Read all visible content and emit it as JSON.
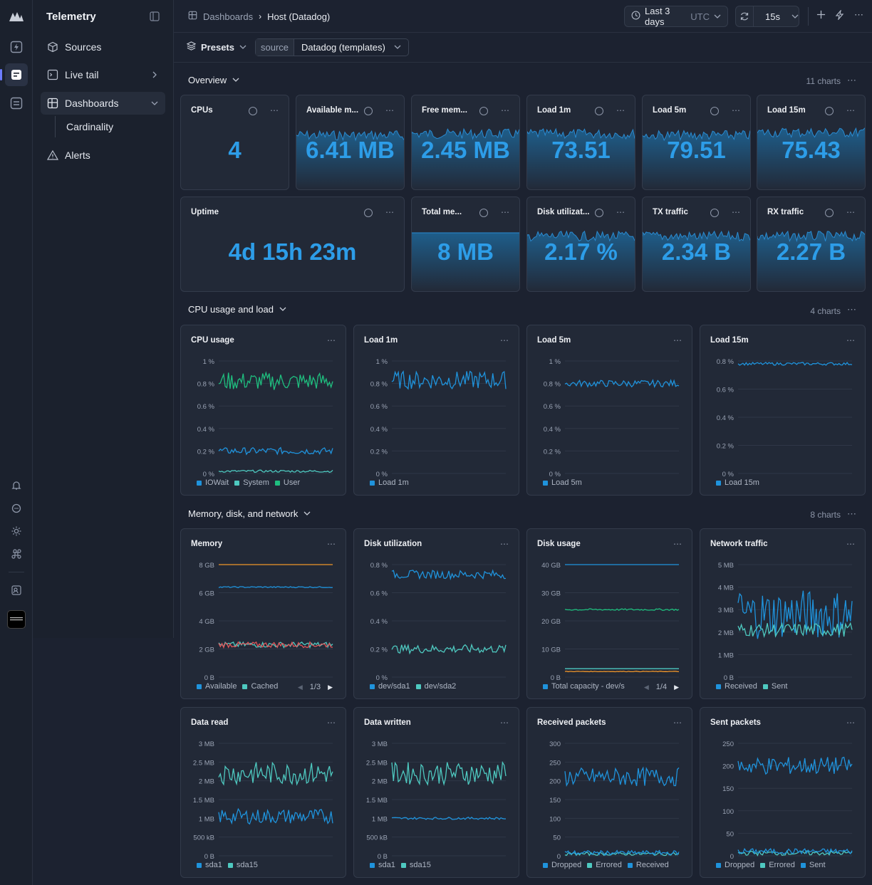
{
  "app": {
    "title": "Telemetry"
  },
  "nav": {
    "items": [
      {
        "label": "Sources",
        "icon": "cube-icon"
      },
      {
        "label": "Live tail",
        "icon": "terminal-icon"
      },
      {
        "label": "Dashboards",
        "icon": "dashboard-icon"
      },
      {
        "label": "Alerts",
        "icon": "alert-icon"
      }
    ],
    "sub_item": "Cardinality"
  },
  "breadcrumb": {
    "root": "Dashboards",
    "current": "Host (Datadog)"
  },
  "toolbar": {
    "time_range": "Last 3 days",
    "tz": "UTC",
    "refresh": "15s"
  },
  "filters": {
    "presets_label": "Presets",
    "source_key": "source",
    "source_value": "Datadog (templates)"
  },
  "sections": [
    {
      "title": "Overview",
      "count": "11 charts"
    },
    {
      "title": "CPU usage and load",
      "count": "4 charts"
    },
    {
      "title": "Memory, disk, and network",
      "count": "8 charts"
    }
  ],
  "stats": [
    {
      "title": "CPUs",
      "value": "4",
      "spark": false
    },
    {
      "title": "Available m...",
      "value": "6.41 MB",
      "spark": true
    },
    {
      "title": "Free mem...",
      "value": "2.45 MB",
      "spark": true
    },
    {
      "title": "Load 1m",
      "value": "73.51",
      "spark": true
    },
    {
      "title": "Load 5m",
      "value": "79.51",
      "spark": true
    },
    {
      "title": "Load 15m",
      "value": "75.43",
      "spark": true
    },
    {
      "title": "Uptime",
      "value": "4d 15h 23m",
      "spark": false
    },
    {
      "title": "Total me...",
      "value": "8 MB",
      "spark": true
    },
    {
      "title": "Disk utilizat...",
      "value": "2.17 %",
      "spark": true
    },
    {
      "title": "TX traffic",
      "value": "2.34 B",
      "spark": true
    },
    {
      "title": "RX traffic",
      "value": "2.27 B",
      "spark": true
    }
  ],
  "colors": {
    "blue": "#1f93dc",
    "teal": "#4ec9c0",
    "green": "#1fbf7f",
    "orange": "#f0962a",
    "red": "#e0565a"
  },
  "charts": [
    {
      "title": "CPU usage",
      "yticks": [
        "1 %",
        "0.8 %",
        "0.6 %",
        "0.4 %",
        "0.2 %",
        "0 %"
      ],
      "ymax": 1,
      "series": [
        {
          "name": "IOWait",
          "color": "#1f93dc",
          "level": 0.2,
          "amp": 0.03
        },
        {
          "name": "System",
          "color": "#4ec9c0",
          "level": 0.02,
          "amp": 0.01
        },
        {
          "name": "User",
          "color": "#1fbf7f",
          "level": 0.82,
          "amp": 0.08
        }
      ],
      "pager": ""
    },
    {
      "title": "Load 1m",
      "yticks": [
        "1 %",
        "0.8 %",
        "0.6 %",
        "0.4 %",
        "0.2 %",
        "0 %"
      ],
      "ymax": 1,
      "series": [
        {
          "name": "Load 1m",
          "color": "#1f93dc",
          "level": 0.83,
          "amp": 0.08
        }
      ],
      "pager": ""
    },
    {
      "title": "Load 5m",
      "yticks": [
        "1 %",
        "0.8 %",
        "0.6 %",
        "0.4 %",
        "0.2 %",
        "0 %"
      ],
      "ymax": 1,
      "series": [
        {
          "name": "Load 5m",
          "color": "#1f93dc",
          "level": 0.8,
          "amp": 0.03
        }
      ],
      "pager": ""
    },
    {
      "title": "Load 15m",
      "yticks": [
        "0.8 %",
        "0.6 %",
        "0.4 %",
        "0.2 %",
        "0 %"
      ],
      "ymax": 0.8,
      "series": [
        {
          "name": "Load 15m",
          "color": "#1f93dc",
          "level": 0.78,
          "amp": 0.01
        }
      ],
      "pager": ""
    },
    {
      "title": "Memory",
      "yticks": [
        "8 GB",
        "6 GB",
        "4 GB",
        "2 GB",
        "0 B"
      ],
      "ymax": 8,
      "series": [
        {
          "name": "Available",
          "color": "#1f93dc",
          "level": 6.4,
          "amp": 0.04
        },
        {
          "name": "Cached",
          "color": "#4ec9c0",
          "level": 2.3,
          "amp": 0.2
        },
        {
          "name": "",
          "color": "#f0962a",
          "level": 8,
          "amp": 0
        },
        {
          "name": "",
          "color": "#e0565a",
          "level": 2.3,
          "amp": 0.2
        }
      ],
      "pager": "1/3"
    },
    {
      "title": "Disk utilization",
      "yticks": [
        "0.8 %",
        "0.6 %",
        "0.4 %",
        "0.2 %",
        "0 %"
      ],
      "ymax": 0.8,
      "series": [
        {
          "name": "dev/sda1",
          "color": "#1f93dc",
          "level": 0.73,
          "amp": 0.03
        },
        {
          "name": "dev/sda2",
          "color": "#4ec9c0",
          "level": 0.2,
          "amp": 0.03
        }
      ],
      "pager": ""
    },
    {
      "title": "Disk usage",
      "yticks": [
        "40 GB",
        "30 GB",
        "20 GB",
        "10 GB",
        "0 B"
      ],
      "ymax": 40,
      "series": [
        {
          "name": "Total capacity - dev/s",
          "color": "#1f93dc",
          "level": 40,
          "amp": 0
        },
        {
          "name": "",
          "color": "#1fbf7f",
          "level": 24,
          "amp": 0.3
        },
        {
          "name": "",
          "color": "#f0962a",
          "level": 2,
          "amp": 0.1
        },
        {
          "name": "",
          "color": "#4ec9c0",
          "level": 3,
          "amp": 0
        }
      ],
      "pager": "1/4"
    },
    {
      "title": "Network traffic",
      "yticks": [
        "5 MB",
        "4 MB",
        "3 MB",
        "2 MB",
        "1 MB",
        "0 B"
      ],
      "ymax": 5,
      "series": [
        {
          "name": "Received",
          "color": "#1f93dc",
          "level": 2.8,
          "amp": 1.1
        },
        {
          "name": "Sent",
          "color": "#4ec9c0",
          "level": 2.1,
          "amp": 0.3
        }
      ],
      "pager": ""
    },
    {
      "title": "Data read",
      "yticks": [
        "3 MB",
        "2.5 MB",
        "2 MB",
        "1.5 MB",
        "1 MB",
        "500 kB",
        "0 B"
      ],
      "ymax": 3,
      "series": [
        {
          "name": "sda1",
          "color": "#1f93dc",
          "level": 1.05,
          "amp": 0.2
        },
        {
          "name": "sda15",
          "color": "#4ec9c0",
          "level": 2.2,
          "amp": 0.3
        }
      ],
      "pager": ""
    },
    {
      "title": "Data written",
      "yticks": [
        "3 MB",
        "2.5 MB",
        "2 MB",
        "1.5 MB",
        "1 MB",
        "500 kB",
        "0 B"
      ],
      "ymax": 3,
      "series": [
        {
          "name": "sda1",
          "color": "#1f93dc",
          "level": 1.0,
          "amp": 0.03
        },
        {
          "name": "sda15",
          "color": "#4ec9c0",
          "level": 2.2,
          "amp": 0.3
        }
      ],
      "pager": ""
    },
    {
      "title": "Received packets",
      "yticks": [
        "300",
        "250",
        "200",
        "150",
        "100",
        "50",
        "0"
      ],
      "ymax": 300,
      "series": [
        {
          "name": "Dropped",
          "color": "#1f93dc",
          "level": 210,
          "amp": 25
        },
        {
          "name": "Errored",
          "color": "#4ec9c0",
          "level": 5,
          "amp": 4
        },
        {
          "name": "Received",
          "color": "#1f93dc",
          "level": 8,
          "amp": 6
        }
      ],
      "pager": ""
    },
    {
      "title": "Sent packets",
      "yticks": [
        "250",
        "200",
        "150",
        "100",
        "50",
        "0"
      ],
      "ymax": 250,
      "series": [
        {
          "name": "Dropped",
          "color": "#1f93dc",
          "level": 200,
          "amp": 20
        },
        {
          "name": "Errored",
          "color": "#4ec9c0",
          "level": 6,
          "amp": 5
        },
        {
          "name": "Sent",
          "color": "#1f93dc",
          "level": 10,
          "amp": 6
        }
      ],
      "pager": ""
    }
  ]
}
